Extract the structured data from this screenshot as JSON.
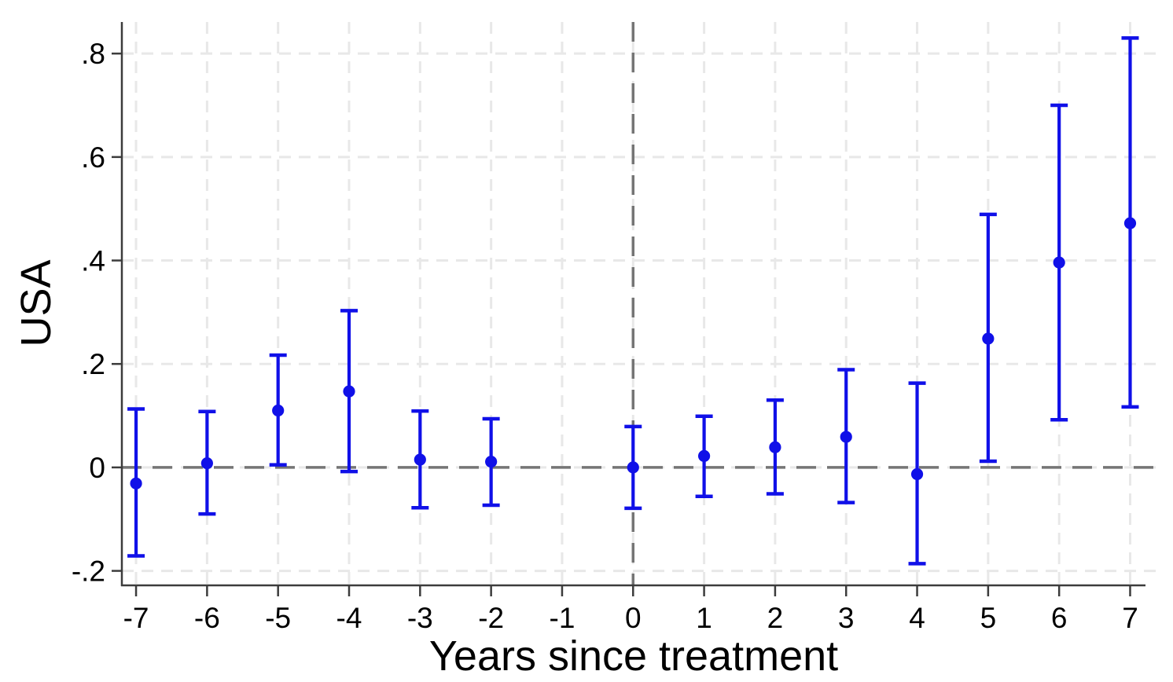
{
  "chart_data": {
    "type": "scatter",
    "subtype": "event-study-coefficient-plot",
    "title": "",
    "xlabel": "Years since treatment",
    "ylabel": "USA",
    "x_domain": [
      -7.2,
      7.36
    ],
    "y_domain": [
      -0.228,
      0.861
    ],
    "x_ticks": [
      {
        "v": -7,
        "label": "-7"
      },
      {
        "v": -6,
        "label": "-6"
      },
      {
        "v": -5,
        "label": "-5"
      },
      {
        "v": -4,
        "label": "-4"
      },
      {
        "v": -3,
        "label": "-3"
      },
      {
        "v": -2,
        "label": "-2"
      },
      {
        "v": -1,
        "label": "-1"
      },
      {
        "v": 0,
        "label": "0"
      },
      {
        "v": 1,
        "label": "1"
      },
      {
        "v": 2,
        "label": "2"
      },
      {
        "v": 3,
        "label": "3"
      },
      {
        "v": 4,
        "label": "4"
      },
      {
        "v": 5,
        "label": "5"
      },
      {
        "v": 6,
        "label": "6"
      },
      {
        "v": 7,
        "label": "7"
      }
    ],
    "y_ticks": [
      {
        "v": -0.2,
        "label": "-.2"
      },
      {
        "v": 0,
        "label": "0"
      },
      {
        "v": 0.2,
        "label": ".2"
      },
      {
        "v": 0.4,
        "label": ".4"
      },
      {
        "v": 0.6,
        "label": ".6"
      },
      {
        "v": 0.8,
        "label": ".8"
      }
    ],
    "grid": {
      "show": true,
      "style": "dashed"
    },
    "legend": {
      "show": false
    },
    "reference_lines": {
      "horizontal_y": 0,
      "vertical_x": 0
    },
    "omitted_period": -1,
    "points": [
      {
        "x": -7,
        "estimate": -0.031,
        "ci_low": -0.171,
        "ci_high": 0.113
      },
      {
        "x": -6,
        "estimate": 0.008,
        "ci_low": -0.09,
        "ci_high": 0.108
      },
      {
        "x": -5,
        "estimate": 0.11,
        "ci_low": 0.005,
        "ci_high": 0.217
      },
      {
        "x": -4,
        "estimate": 0.147,
        "ci_low": -0.008,
        "ci_high": 0.303
      },
      {
        "x": -3,
        "estimate": 0.015,
        "ci_low": -0.078,
        "ci_high": 0.109
      },
      {
        "x": -2,
        "estimate": 0.011,
        "ci_low": -0.073,
        "ci_high": 0.094
      },
      {
        "x": -1,
        "estimate": null,
        "ci_low": null,
        "ci_high": null
      },
      {
        "x": 0,
        "estimate": 0.0,
        "ci_low": -0.079,
        "ci_high": 0.079
      },
      {
        "x": 1,
        "estimate": 0.022,
        "ci_low": -0.056,
        "ci_high": 0.099
      },
      {
        "x": 2,
        "estimate": 0.039,
        "ci_low": -0.051,
        "ci_high": 0.13
      },
      {
        "x": 3,
        "estimate": 0.059,
        "ci_low": -0.068,
        "ci_high": 0.189
      },
      {
        "x": 4,
        "estimate": -0.013,
        "ci_low": -0.186,
        "ci_high": 0.163
      },
      {
        "x": 5,
        "estimate": 0.249,
        "ci_low": 0.012,
        "ci_high": 0.489
      },
      {
        "x": 6,
        "estimate": 0.396,
        "ci_low": 0.092,
        "ci_high": 0.7
      },
      {
        "x": 7,
        "estimate": 0.472,
        "ci_low": 0.117,
        "ci_high": 0.83
      }
    ],
    "colors": {
      "point": "#1010e8",
      "reference": "#757575",
      "gridline": "#e8e8e8",
      "axis": "#3c3c3c",
      "text": "#000000",
      "background": "#ffffff"
    }
  }
}
